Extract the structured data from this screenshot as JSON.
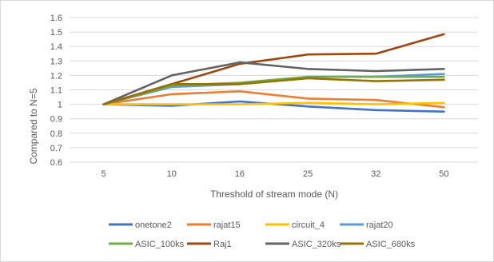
{
  "chart_data": {
    "type": "line",
    "title": "",
    "xlabel": "Threshold of stream mode (N)",
    "ylabel": "Compared to N=5",
    "categories": [
      "5",
      "10",
      "16",
      "25",
      "32",
      "50"
    ],
    "ylim": [
      0.6,
      1.6
    ],
    "yticks": [
      "0.6",
      "0.7",
      "0.8",
      "0.9",
      "1",
      "1.1",
      "1.2",
      "1.3",
      "1.4",
      "1.5",
      "1.6"
    ],
    "grid": true,
    "legend_position": "bottom",
    "series": [
      {
        "name": "onetone2",
        "color": "#4472C4",
        "values": [
          1.0,
          0.99,
          1.02,
          0.985,
          0.96,
          0.95
        ]
      },
      {
        "name": "rajat15",
        "color": "#ED7D31",
        "values": [
          1.0,
          1.07,
          1.09,
          1.04,
          1.03,
          0.98
        ]
      },
      {
        "name": "circuit_4",
        "color": "#FFC000",
        "values": [
          1.0,
          1.0,
          1.0,
          1.01,
          1.0,
          1.01
        ]
      },
      {
        "name": "rajat20",
        "color": "#5B9BD5",
        "values": [
          1.0,
          1.12,
          1.14,
          1.19,
          1.19,
          1.21
        ]
      },
      {
        "name": "ASIC_100ks",
        "color": "#70AD47",
        "values": [
          1.0,
          1.13,
          1.15,
          1.19,
          1.19,
          1.19
        ]
      },
      {
        "name": "Raj1",
        "color": "#9E480E",
        "values": [
          1.0,
          1.14,
          1.28,
          1.345,
          1.35,
          1.485
        ]
      },
      {
        "name": "ASIC_320ks",
        "color": "#636363",
        "values": [
          1.0,
          1.2,
          1.29,
          1.245,
          1.23,
          1.245
        ]
      },
      {
        "name": "ASIC_680ks",
        "color": "#997300",
        "values": [
          1.0,
          1.14,
          1.14,
          1.18,
          1.16,
          1.17
        ]
      }
    ]
  }
}
